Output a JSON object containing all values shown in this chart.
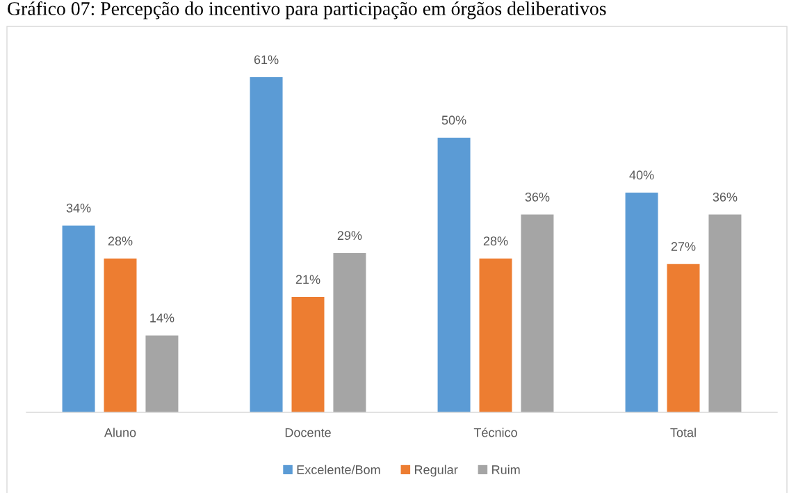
{
  "chart_data": {
    "type": "bar",
    "title": "Gráfico 07: Percepção do incentivo para participação em órgãos deliberativos",
    "categories": [
      "Aluno",
      "Docente",
      "Técnico",
      "Total"
    ],
    "series": [
      {
        "name": "Excelente/Bom",
        "color": "#5b9bd5",
        "values": [
          34,
          61,
          50,
          40
        ],
        "value_labels": [
          "34%",
          "61%",
          "50%",
          "40%"
        ]
      },
      {
        "name": "Regular",
        "color": "#ed7d31",
        "values": [
          28,
          21,
          28,
          27
        ],
        "value_labels": [
          "28%",
          "21%",
          "28%",
          "27%"
        ]
      },
      {
        "name": "Ruim",
        "color": "#a5a5a5",
        "values": [
          14,
          29,
          36,
          36
        ],
        "value_labels": [
          "14%",
          "29%",
          "36%",
          "36%"
        ]
      }
    ],
    "ylim": [
      0,
      70
    ],
    "tick_labels": "x",
    "legend": "bottom"
  }
}
